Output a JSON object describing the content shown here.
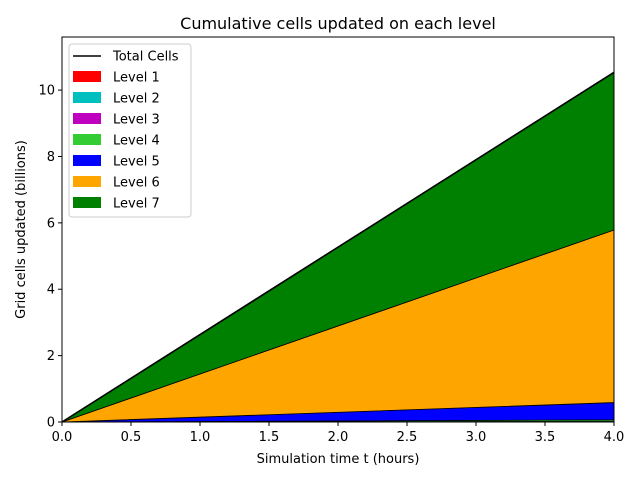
{
  "chart_data": {
    "type": "area",
    "title": "Cumulative cells updated on each level",
    "xlabel": "Simulation time t (hours)",
    "ylabel": "Grid cells updated (billions)",
    "xlim": [
      0.0,
      4.0
    ],
    "ylim": [
      0,
      11.6
    ],
    "xticks": [
      "0.0",
      "0.5",
      "1.0",
      "1.5",
      "2.0",
      "2.5",
      "3.0",
      "3.5",
      "4.0"
    ],
    "yticks": [
      "0",
      "2",
      "4",
      "6",
      "8",
      "10"
    ],
    "x": [
      0.0,
      4.0
    ],
    "stacked": true,
    "legend_position": "upper-left",
    "total_line": {
      "name": "Total Cells",
      "color": "#000000"
    },
    "series": [
      {
        "name": "Level 1",
        "color": "#ff0000",
        "values": [
          0,
          0.0005
        ]
      },
      {
        "name": "Level 2",
        "color": "#00bfbf",
        "values": [
          0,
          0.003
        ]
      },
      {
        "name": "Level 3",
        "color": "#bf00bf",
        "values": [
          0,
          0.012
        ]
      },
      {
        "name": "Level 4",
        "color": "#33cc33",
        "values": [
          0,
          0.05
        ]
      },
      {
        "name": "Level 5",
        "color": "#0000ff",
        "values": [
          0,
          0.52
        ]
      },
      {
        "name": "Level 6",
        "color": "#ffa500",
        "values": [
          0,
          5.2
        ]
      },
      {
        "name": "Level 7",
        "color": "#008000",
        "values": [
          0,
          4.75
        ]
      }
    ]
  }
}
